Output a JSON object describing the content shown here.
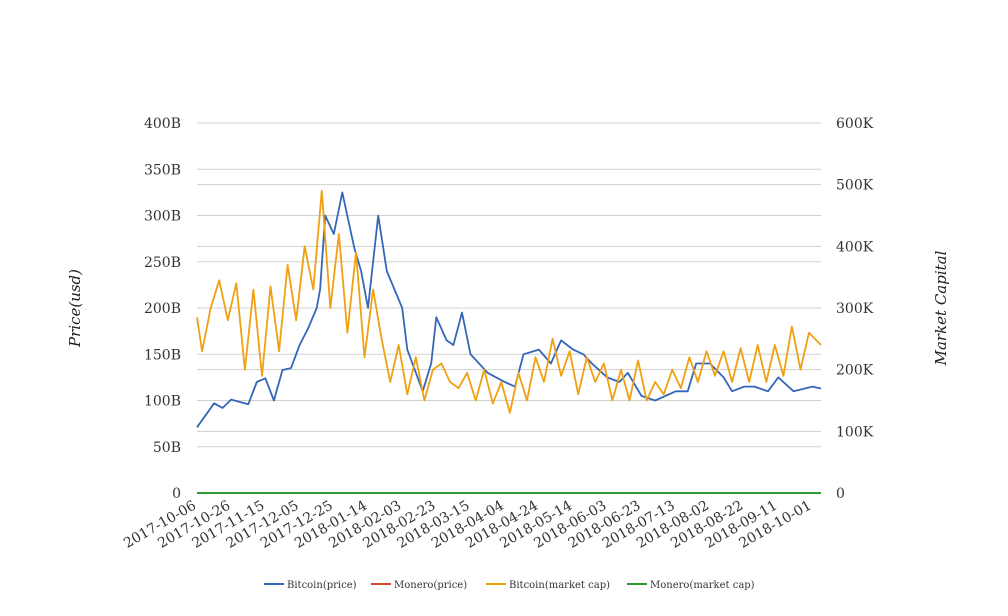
{
  "chart_data": {
    "type": "line",
    "y_left": {
      "label": "Price(usd)",
      "ticks": [
        "0",
        "50B",
        "100B",
        "150B",
        "200B",
        "250B",
        "300B",
        "350B",
        "400B"
      ],
      "range": [
        0,
        400
      ]
    },
    "y_right": {
      "label": "Market Capital",
      "ticks": [
        "0",
        "100K",
        "200K",
        "300K",
        "400K",
        "500K",
        "600K"
      ],
      "range": [
        0,
        600
      ]
    },
    "x_ticks": [
      "2017-10-06",
      "2017-10-26",
      "2017-11-15",
      "2017-12-05",
      "2017-12-25",
      "2018-01-14",
      "2018-02-03",
      "2018-02-23",
      "2018-03-15",
      "2018-04-04",
      "2018-04-24",
      "2018-05-14",
      "2018-06-03",
      "2018-06-23",
      "2018-07-13",
      "2018-08-02",
      "2018-08-22",
      "2018-09-11",
      "2018-10-01"
    ],
    "x_range": [
      "2017-10-06",
      "2018-10-06"
    ],
    "grid": true,
    "legend_position": "bottom",
    "series": [
      {
        "name": "Bitcoin(price)",
        "axis": "left",
        "color": "#3566b8",
        "x": [
          "2017-10-06",
          "2017-10-16",
          "2017-10-21",
          "2017-10-26",
          "2017-11-05",
          "2017-11-10",
          "2017-11-15",
          "2017-11-20",
          "2017-11-25",
          "2017-11-30",
          "2017-12-05",
          "2017-12-10",
          "2017-12-15",
          "2017-12-17",
          "2017-12-20",
          "2017-12-25",
          "2017-12-30",
          "2018-01-06",
          "2018-01-10",
          "2018-01-14",
          "2018-01-20",
          "2018-01-25",
          "2018-02-03",
          "2018-02-06",
          "2018-02-15",
          "2018-02-20",
          "2018-02-23",
          "2018-03-01",
          "2018-03-05",
          "2018-03-10",
          "2018-03-15",
          "2018-03-20",
          "2018-03-25",
          "2018-04-04",
          "2018-04-10",
          "2018-04-15",
          "2018-04-24",
          "2018-05-01",
          "2018-05-07",
          "2018-05-14",
          "2018-05-20",
          "2018-05-25",
          "2018-06-03",
          "2018-06-10",
          "2018-06-15",
          "2018-06-23",
          "2018-07-01",
          "2018-07-13",
          "2018-07-20",
          "2018-07-25",
          "2018-08-02",
          "2018-08-10",
          "2018-08-15",
          "2018-08-22",
          "2018-08-28",
          "2018-09-05",
          "2018-09-11",
          "2018-09-20",
          "2018-10-01",
          "2018-10-06"
        ],
        "y": [
          71,
          97,
          92,
          101,
          96,
          120,
          124,
          100,
          133,
          135,
          160,
          178,
          200,
          220,
          300,
          280,
          325,
          265,
          240,
          200,
          300,
          240,
          200,
          155,
          110,
          140,
          190,
          165,
          160,
          195,
          150,
          140,
          130,
          120,
          115,
          150,
          155,
          140,
          165,
          155,
          150,
          140,
          125,
          120,
          130,
          105,
          100,
          110,
          110,
          140,
          140,
          125,
          110,
          115,
          115,
          110,
          125,
          110,
          115,
          113
        ]
      },
      {
        "name": "Monero(price)",
        "axis": "left",
        "color": "#d9482b",
        "x": [
          "2017-10-06",
          "2018-10-06"
        ],
        "y": [
          0,
          0
        ]
      },
      {
        "name": "Bitcoin(market cap)",
        "axis": "right",
        "color": "#f0a010",
        "x": [
          "2017-10-06",
          "2017-10-09",
          "2017-10-14",
          "2017-10-19",
          "2017-10-24",
          "2017-10-29",
          "2017-11-03",
          "2017-11-08",
          "2017-11-13",
          "2017-11-18",
          "2017-11-23",
          "2017-11-28",
          "2017-12-03",
          "2017-12-08",
          "2017-12-13",
          "2017-12-18",
          "2017-12-23",
          "2017-12-28",
          "2018-01-02",
          "2018-01-07",
          "2018-01-12",
          "2018-01-17",
          "2018-01-22",
          "2018-01-27",
          "2018-02-01",
          "2018-02-06",
          "2018-02-11",
          "2018-02-16",
          "2018-02-21",
          "2018-02-26",
          "2018-03-03",
          "2018-03-08",
          "2018-03-13",
          "2018-03-18",
          "2018-03-23",
          "2018-03-28",
          "2018-04-02",
          "2018-04-07",
          "2018-04-12",
          "2018-04-17",
          "2018-04-22",
          "2018-04-27",
          "2018-05-02",
          "2018-05-07",
          "2018-05-12",
          "2018-05-17",
          "2018-05-22",
          "2018-05-27",
          "2018-06-01",
          "2018-06-06",
          "2018-06-11",
          "2018-06-16",
          "2018-06-21",
          "2018-06-26",
          "2018-07-01",
          "2018-07-06",
          "2018-07-11",
          "2018-07-16",
          "2018-07-21",
          "2018-07-26",
          "2018-07-31",
          "2018-08-05",
          "2018-08-10",
          "2018-08-15",
          "2018-08-20",
          "2018-08-25",
          "2018-08-30",
          "2018-09-04",
          "2018-09-09",
          "2018-09-14",
          "2018-09-19",
          "2018-09-24",
          "2018-09-29",
          "2018-10-06"
        ],
        "y": [
          285,
          230,
          300,
          345,
          280,
          340,
          200,
          330,
          190,
          335,
          230,
          370,
          280,
          400,
          330,
          490,
          300,
          420,
          260,
          390,
          220,
          330,
          250,
          180,
          240,
          160,
          220,
          150,
          200,
          210,
          180,
          170,
          195,
          150,
          200,
          145,
          180,
          130,
          195,
          150,
          220,
          180,
          250,
          190,
          230,
          160,
          220,
          180,
          210,
          150,
          200,
          150,
          215,
          150,
          180,
          160,
          200,
          170,
          220,
          180,
          230,
          190,
          230,
          180,
          235,
          180,
          240,
          180,
          240,
          190,
          270,
          200,
          260,
          240
        ]
      },
      {
        "name": "Monero(market cap)",
        "axis": "right",
        "color": "#2e9a30",
        "x": [
          "2017-10-06",
          "2018-10-06"
        ],
        "y": [
          0,
          0
        ]
      }
    ]
  }
}
